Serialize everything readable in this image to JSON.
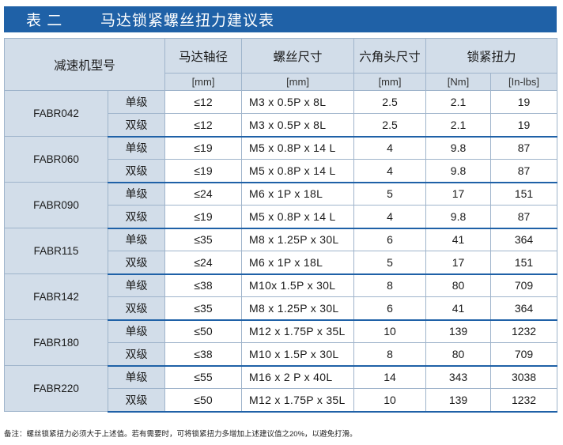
{
  "title": {
    "label": "表 二",
    "text": "马达锁紧螺丝扭力建议表"
  },
  "headers": {
    "model": "减速机型号",
    "shaft": "马达轴径",
    "screw": "螺丝尺寸",
    "hex": "六角头尺寸",
    "torque": "锁紧扭力",
    "units": {
      "shaft": "[mm]",
      "screw": "[mm]",
      "hex": "[mm]",
      "nm": "[Nm]",
      "inlbs": "[In-lbs]"
    }
  },
  "groups": [
    {
      "model": "FABR042",
      "rows": [
        {
          "stage": "单级",
          "shaft": "≤12",
          "screw": "M3 x 0.5P x 8L",
          "hex": "2.5",
          "nm": "2.1",
          "inlbs": "19"
        },
        {
          "stage": "双级",
          "shaft": "≤12",
          "screw": "M3 x 0.5P x 8L",
          "hex": "2.5",
          "nm": "2.1",
          "inlbs": "19"
        }
      ]
    },
    {
      "model": "FABR060",
      "rows": [
        {
          "stage": "单级",
          "shaft": "≤19",
          "screw": "M5 x 0.8P x 14 L",
          "hex": "4",
          "nm": "9.8",
          "inlbs": "87"
        },
        {
          "stage": "双级",
          "shaft": "≤19",
          "screw": "M5 x 0.8P x 14 L",
          "hex": "4",
          "nm": "9.8",
          "inlbs": "87"
        }
      ]
    },
    {
      "model": "FABR090",
      "rows": [
        {
          "stage": "单级",
          "shaft": "≤24",
          "screw": "M6 x 1P x 18L",
          "hex": "5",
          "nm": "17",
          "inlbs": "151"
        },
        {
          "stage": "双级",
          "shaft": "≤19",
          "screw": "M5 x 0.8P x 14 L",
          "hex": "4",
          "nm": "9.8",
          "inlbs": "87"
        }
      ]
    },
    {
      "model": "FABR115",
      "rows": [
        {
          "stage": "单级",
          "shaft": "≤35",
          "screw": "M8 x 1.25P x 30L",
          "hex": "6",
          "nm": "41",
          "inlbs": "364"
        },
        {
          "stage": "双级",
          "shaft": "≤24",
          "screw": "M6 x 1P x 18L",
          "hex": "5",
          "nm": "17",
          "inlbs": "151"
        }
      ]
    },
    {
      "model": "FABR142",
      "rows": [
        {
          "stage": "单级",
          "shaft": "≤38",
          "screw": "M10x 1.5P x 30L",
          "hex": "8",
          "nm": "80",
          "inlbs": "709"
        },
        {
          "stage": "双级",
          "shaft": "≤35",
          "screw": "M8 x 1.25P x 30L",
          "hex": "6",
          "nm": "41",
          "inlbs": "364"
        }
      ]
    },
    {
      "model": "FABR180",
      "rows": [
        {
          "stage": "单级",
          "shaft": "≤50",
          "screw": "M12 x 1.75P x 35L",
          "hex": "10",
          "nm": "139",
          "inlbs": "1232"
        },
        {
          "stage": "双级",
          "shaft": "≤38",
          "screw": "M10 x 1.5P x 30L",
          "hex": "8",
          "nm": "80",
          "inlbs": "709"
        }
      ]
    },
    {
      "model": "FABR220",
      "rows": [
        {
          "stage": "单级",
          "shaft": "≤55",
          "screw": "M16 x 2 P x 40L",
          "hex": "14",
          "nm": "343",
          "inlbs": "3038"
        },
        {
          "stage": "双级",
          "shaft": "≤50",
          "screw": "M12 x 1.75P x 35L",
          "hex": "10",
          "nm": "139",
          "inlbs": "1232"
        }
      ]
    }
  ],
  "note": "备注：螺丝锁紧扭力必须大于上述值。若有需要时，可将锁紧扭力多增加上述建议值之20%，以避免打滑。"
}
